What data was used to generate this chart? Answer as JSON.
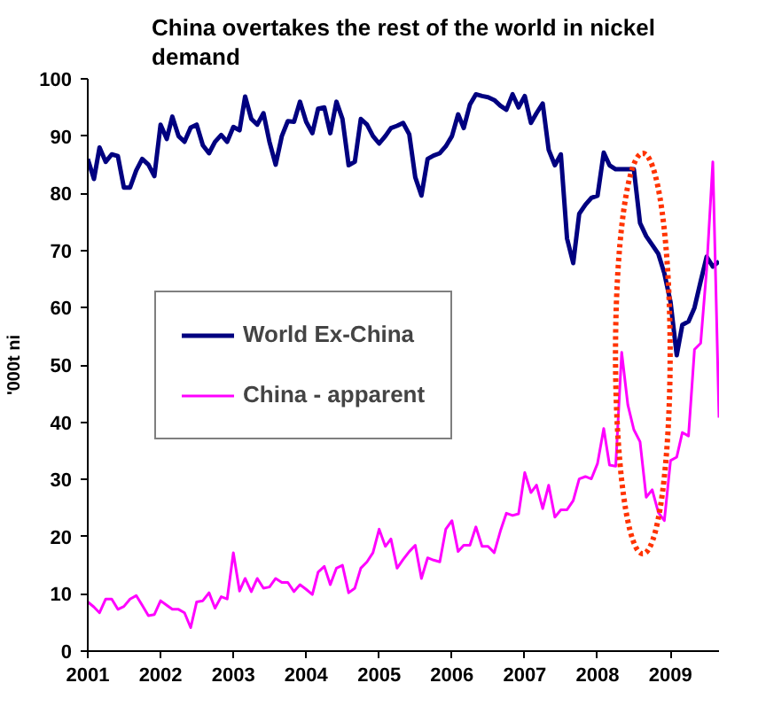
{
  "chart_data": {
    "type": "line",
    "title": "China overtakes the rest of the world in nickel demand",
    "ylabel": "'000t ni",
    "x": [
      "2001-01",
      "2001-02",
      "2001-03",
      "2001-04",
      "2001-05",
      "2001-06",
      "2001-07",
      "2001-08",
      "2001-09",
      "2001-10",
      "2001-11",
      "2001-12",
      "2002-01",
      "2002-02",
      "2002-03",
      "2002-04",
      "2002-05",
      "2002-06",
      "2002-07",
      "2002-08",
      "2002-09",
      "2002-10",
      "2002-11",
      "2002-12",
      "2003-01",
      "2003-02",
      "2003-03",
      "2003-04",
      "2003-05",
      "2003-06",
      "2003-07",
      "2003-08",
      "2003-09",
      "2003-10",
      "2003-11",
      "2003-12",
      "2004-01",
      "2004-02",
      "2004-03",
      "2004-04",
      "2004-05",
      "2004-06",
      "2004-07",
      "2004-08",
      "2004-09",
      "2004-10",
      "2004-11",
      "2004-12",
      "2005-01",
      "2005-02",
      "2005-03",
      "2005-04",
      "2005-05",
      "2005-06",
      "2005-07",
      "2005-08",
      "2005-09",
      "2005-10",
      "2005-11",
      "2005-12",
      "2006-01",
      "2006-02",
      "2006-03",
      "2006-04",
      "2006-05",
      "2006-06",
      "2006-07",
      "2006-08",
      "2006-09",
      "2006-10",
      "2006-11",
      "2006-12",
      "2007-01",
      "2007-02",
      "2007-03",
      "2007-04",
      "2007-05",
      "2007-06",
      "2007-07",
      "2007-08",
      "2007-09",
      "2007-10",
      "2007-11",
      "2007-12",
      "2008-01",
      "2008-02",
      "2008-03",
      "2008-04",
      "2008-05",
      "2008-06",
      "2008-07",
      "2008-08",
      "2008-09",
      "2008-10",
      "2008-11",
      "2008-12",
      "2009-01",
      "2009-02",
      "2009-03",
      "2009-04",
      "2009-05",
      "2009-06",
      "2009-07",
      "2009-08",
      "2009-09"
    ],
    "series": [
      {
        "name": "World Ex-China",
        "color": "#000080",
        "values": [
          86,
          82.5,
          88,
          85.5,
          86.8,
          86.5,
          81,
          81,
          84,
          86,
          85,
          83,
          92,
          89.5,
          93.4,
          90,
          89,
          91.5,
          92,
          88.4,
          87,
          89,
          90.2,
          89,
          91.6,
          91,
          96.9,
          93,
          92,
          94,
          89,
          85,
          90,
          92.6,
          92.5,
          96,
          92.5,
          90.5,
          94.8,
          95,
          90.5,
          96,
          93,
          84.9,
          85.5,
          93,
          92,
          90,
          88.7,
          90,
          91.4,
          91.8,
          92.3,
          90.3,
          82.8,
          79.6,
          86,
          86.6,
          87,
          88.2,
          90,
          93.8,
          91.4,
          95.5,
          97.3,
          97,
          96.8,
          96.3,
          95.3,
          94.6,
          97.3,
          95,
          97,
          92.3,
          94,
          95.7,
          87.6,
          84.9,
          86.8,
          72.1,
          67.8,
          76.4,
          78,
          79.2,
          79.6,
          87.1,
          84.9,
          84.2,
          84.2,
          84.2,
          84.2,
          74.8,
          72.5,
          71,
          69.4,
          66,
          61,
          51.7,
          57,
          57.6,
          60,
          64.6,
          68.9,
          67.2,
          68.1
        ]
      },
      {
        "name": "China - apparent",
        "color": "#ff00ff",
        "values": [
          8.6,
          7.7,
          6.7,
          9.1,
          9.1,
          7.3,
          7.8,
          9.1,
          9.7,
          8,
          6.2,
          6.4,
          8.8,
          8,
          7.3,
          7.3,
          6.7,
          4.1,
          8.6,
          8.8,
          10.2,
          7.5,
          9.5,
          9.1,
          17.2,
          10.5,
          12.7,
          10.4,
          12.7,
          11,
          11.2,
          12.7,
          12,
          12,
          10.4,
          11.6,
          10.8,
          9.9,
          13.8,
          14.8,
          11.6,
          14.5,
          15,
          10.2,
          11,
          14.5,
          15.6,
          17.2,
          21.3,
          18.3,
          19.6,
          14.5,
          16,
          17.4,
          18.5,
          12.7,
          16.3,
          15.9,
          15.6,
          21.3,
          22.8,
          17.4,
          18.5,
          18.5,
          21.7,
          18.3,
          18.3,
          17.2,
          21,
          24.1,
          23.7,
          24,
          31.2,
          27.7,
          29,
          24.9,
          29,
          23.4,
          24.7,
          24.7,
          26.3,
          30.1,
          30.5,
          30.1,
          32.8,
          38.9,
          32.5,
          32.3,
          52.2,
          43,
          38.7,
          36.6,
          26.9,
          28.2,
          24.2,
          22.8,
          33.3,
          33.9,
          38.2,
          37.6,
          52.7,
          53.8,
          66.7,
          85.5,
          40.8
        ]
      }
    ],
    "xlim": [
      "2001-01",
      "2009-09"
    ],
    "xticks": [
      "2001",
      "2002",
      "2003",
      "2004",
      "2005",
      "2006",
      "2007",
      "2008",
      "2009"
    ],
    "ylim": [
      0,
      100
    ],
    "yticks": [
      0,
      10,
      20,
      30,
      40,
      50,
      60,
      70,
      80,
      90,
      100
    ],
    "grid": false,
    "legend": "left",
    "line_style": "solid",
    "marker": "none"
  }
}
